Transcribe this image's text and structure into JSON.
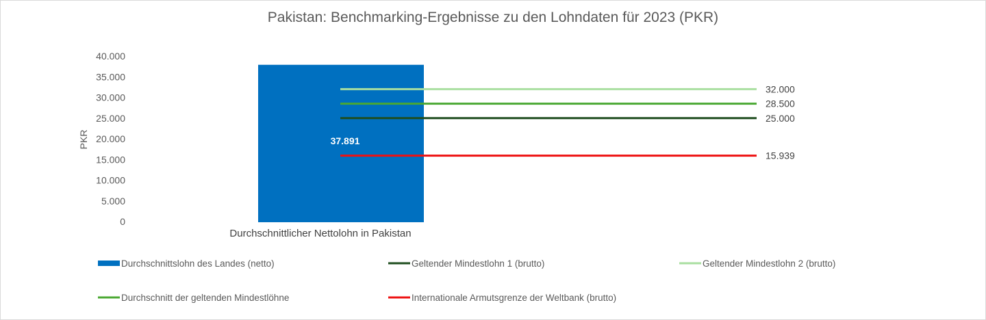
{
  "chart_data": {
    "type": "bar",
    "title": "Pakistan: Benchmarking-Ergebnisse zu den Lohndaten für 2023 (PKR)",
    "ylabel": "PKR",
    "ylim": [
      0,
      40000
    ],
    "yticks": [
      {
        "value": 0,
        "label": "0"
      },
      {
        "value": 5000,
        "label": "5.000"
      },
      {
        "value": 10000,
        "label": "10.000"
      },
      {
        "value": 15000,
        "label": "15.000"
      },
      {
        "value": 20000,
        "label": "20.000"
      },
      {
        "value": 25000,
        "label": "25.000"
      },
      {
        "value": 30000,
        "label": "30.000"
      },
      {
        "value": 35000,
        "label": "35.000"
      },
      {
        "value": 40000,
        "label": "40.000"
      }
    ],
    "categories": [
      "Durchschnittlicher Nettolohn in Pakistan"
    ],
    "bar": {
      "name": "Durchschnittslohn des Landes (netto)",
      "value": 37891,
      "label": "37.891",
      "color": "#0070c0"
    },
    "lines": [
      {
        "name": "Geltender Mindestlohn 1 (brutto)",
        "value": 25000,
        "label": "25.000",
        "color": "#1e4d1e"
      },
      {
        "name": "Geltender Mindestlohn 2 (brutto)",
        "value": 32000,
        "label": "32.000",
        "color": "#a9dfa0"
      },
      {
        "name": "Durchschnitt der geltenden Mindestlöhne",
        "value": 28500,
        "label": "28.500",
        "color": "#4aa832"
      },
      {
        "name": "Internationale Armutsgrenze der Weltbank (brutto)",
        "value": 15939,
        "label": "15.939",
        "color": "#ee1111"
      }
    ],
    "legend_position": "bottom",
    "grid": false
  }
}
